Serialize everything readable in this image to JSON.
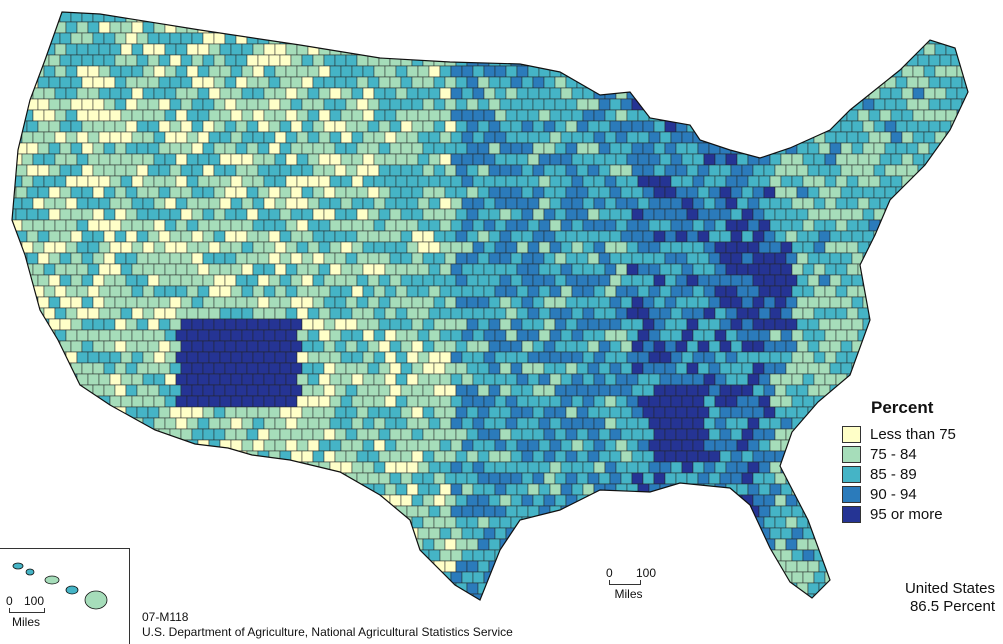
{
  "legend": {
    "title": "Percent",
    "items": [
      {
        "label": "Less than 75",
        "color": "#FFFFC8"
      },
      {
        "label": "75 - 84",
        "color": "#A6DDBA"
      },
      {
        "label": "85 - 89",
        "color": "#45B4C6"
      },
      {
        "label": "90 - 94",
        "color": "#2B7BBB"
      },
      {
        "label": "95 or more",
        "color": "#253494"
      }
    ]
  },
  "summary": {
    "line1": "United States",
    "line2": "86.5 Percent"
  },
  "credit": {
    "code": "07-M118",
    "source": "U.S. Department of Agriculture, National Agricultural Statistics Service"
  },
  "scale_main": {
    "start": "0",
    "end": "100",
    "unit": "Miles"
  },
  "scale_inset": {
    "start": "0",
    "end": "100",
    "unit": "Miles"
  }
}
